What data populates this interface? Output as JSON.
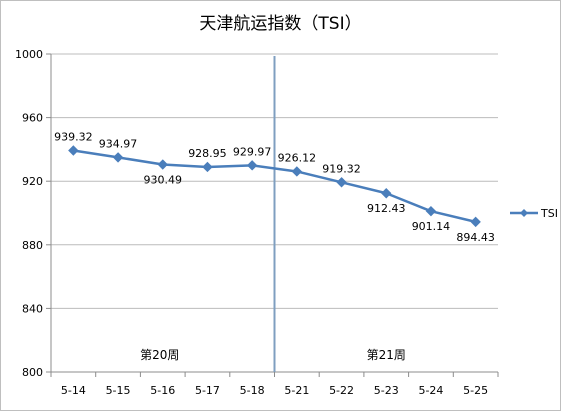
{
  "chart_data": {
    "type": "line",
    "title": "天津航运指数（TSI）",
    "categories": [
      "5-14",
      "5-15",
      "5-16",
      "5-17",
      "5-18",
      "5-21",
      "5-22",
      "5-23",
      "5-24",
      "5-25"
    ],
    "series": [
      {
        "name": "TSI",
        "values": [
          939.32,
          934.97,
          930.49,
          928.95,
          929.97,
          926.12,
          919.32,
          912.43,
          901.14,
          894.43
        ],
        "color": "#4a7ebb"
      }
    ],
    "data_labels": [
      "939.32",
      "934.97",
      "930.49",
      "928.95",
      "929.97",
      "926.12",
      "919.32",
      "912.43",
      "901.14",
      "894.43"
    ],
    "ylim": [
      800,
      1000
    ],
    "yticks": [
      800,
      840,
      880,
      920,
      960,
      1000
    ],
    "grid": true,
    "legend": "right",
    "week_labels": [
      "第20周",
      "第21周"
    ],
    "divider_after_category": "5-18",
    "divider_color": "#7f9fc0"
  }
}
